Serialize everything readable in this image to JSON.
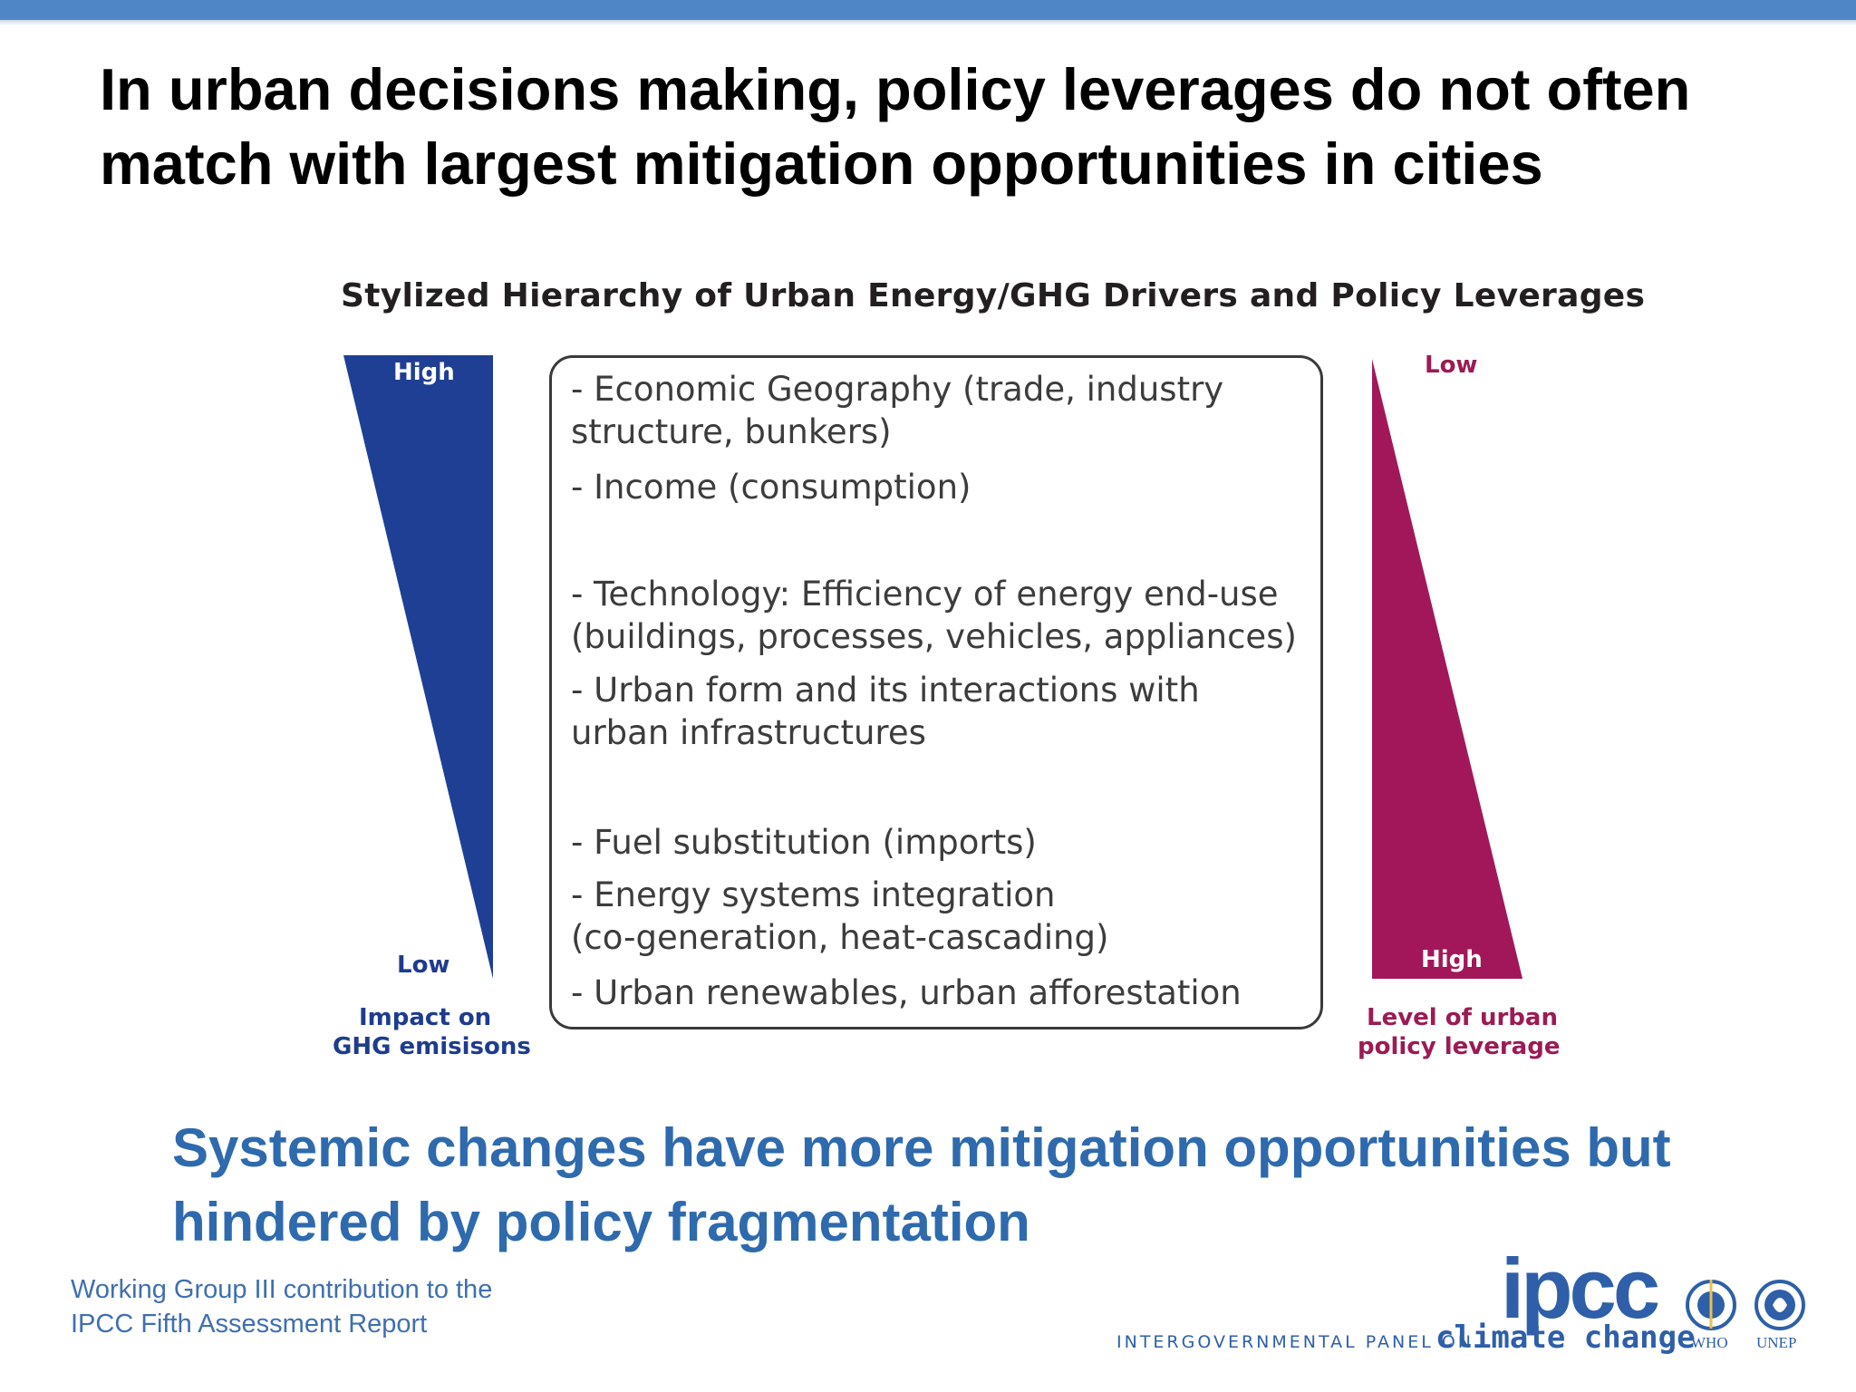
{
  "slide": {
    "title_lines": [
      "In urban decisions making, policy leverages do not often",
      "match with largest mitigation opportunities in cities"
    ],
    "takeaway_lines": [
      "Systemic changes have more mitigation opportunities but",
      "hindered by policy fragmentation"
    ],
    "footer_lines": [
      "Working Group III contribution to the",
      "IPCC Fifth Assessment Report"
    ]
  },
  "figure": {
    "title": "Stylized Hierarchy of Urban Energy/GHG Drivers and Policy Leverages",
    "left_wedge": {
      "top_label": "High",
      "bottom_label": "Low",
      "caption_lines": [
        "Impact on",
        "GHG emisisons"
      ],
      "color": "#1e3f94"
    },
    "right_wedge": {
      "top_label": "Low",
      "bottom_label": "High",
      "caption_lines": [
        "Level of urban",
        "policy leverage"
      ],
      "color": "#a2175a"
    },
    "drivers": [
      [
        "- Economic Geography (trade, industry",
        "structure, bunkers)"
      ],
      [
        "- Income (consumption)"
      ],
      [
        "- Technology: Efficiency of energy end-use",
        "(buildings, processes, vehicles, appliances)"
      ],
      [
        "- Urban form and its interactions with",
        "urban infrastructures"
      ],
      [
        "- Fuel substitution (imports)"
      ],
      [
        "- Energy systems integration",
        "(co-generation, heat-cascading)"
      ],
      [
        "- Urban renewables, urban afforestation"
      ]
    ]
  },
  "logos": {
    "ipcc_wordmark": "ipcc",
    "ipcc_subtitle_1": "INTERGOVERNMENTAL PANEL ON",
    "ipcc_subtitle_2": "climate change",
    "who_label": "WHO",
    "unep_label": "UNEP",
    "brand_color": "#2e5fa8"
  }
}
